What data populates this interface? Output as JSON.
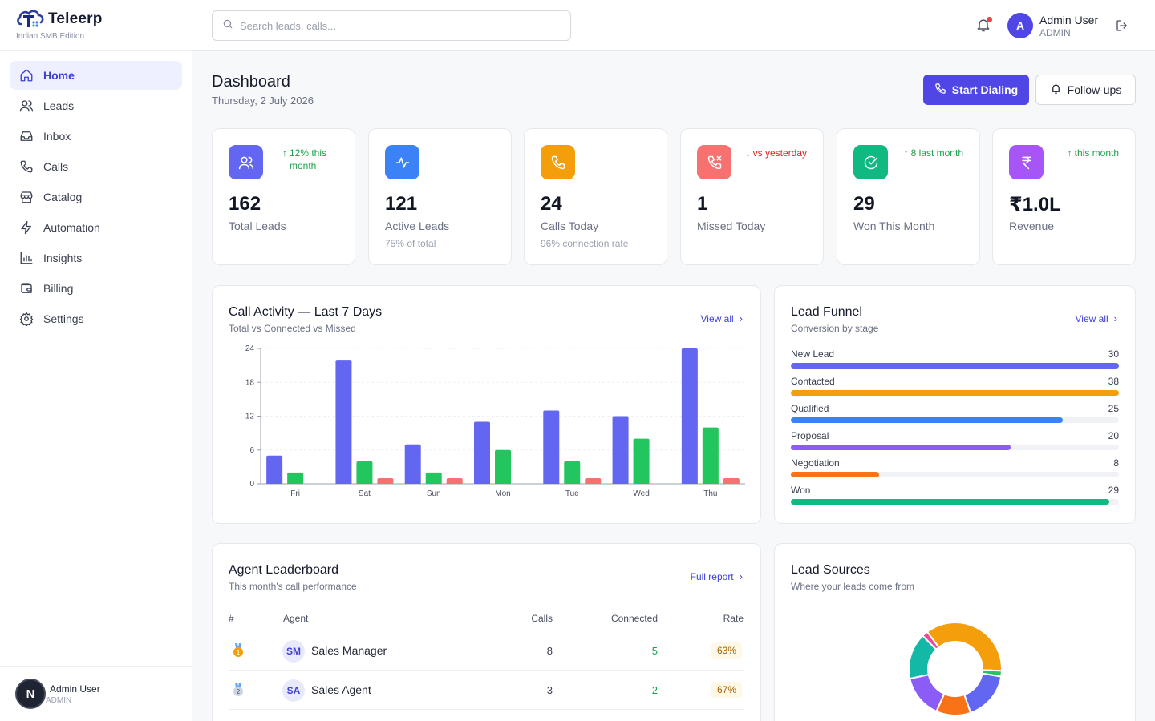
{
  "brand": {
    "name": "Teleerp",
    "subtitle": "Indian SMB Edition"
  },
  "nav": [
    {
      "label": "Home",
      "icon": "home-icon",
      "active": true
    },
    {
      "label": "Leads",
      "icon": "users-icon"
    },
    {
      "label": "Inbox",
      "icon": "inbox-icon"
    },
    {
      "label": "Calls",
      "icon": "phone-icon"
    },
    {
      "label": "Catalog",
      "icon": "store-icon"
    },
    {
      "label": "Automation",
      "icon": "zap-icon"
    },
    {
      "label": "Insights",
      "icon": "bar-chart-icon"
    },
    {
      "label": "Billing",
      "icon": "wallet-icon"
    },
    {
      "label": "Settings",
      "icon": "gear-icon"
    }
  ],
  "sidebar_user": {
    "initial": "N",
    "name": "Admin User",
    "role": "ADMIN"
  },
  "search": {
    "placeholder": "Search leads, calls..."
  },
  "user": {
    "initial": "A",
    "name": "Admin User",
    "role": "ADMIN"
  },
  "header": {
    "title": "Dashboard",
    "date": "Thursday, 2 July 2026",
    "primary_button": "Start Dialing",
    "secondary_button": "Follow-ups"
  },
  "stats": [
    {
      "value": "162",
      "label": "Total Leads",
      "sub": "",
      "trend": "12% this month",
      "trend_dir": "up",
      "color": "#6366f1",
      "icon": "users-icon"
    },
    {
      "value": "121",
      "label": "Active Leads",
      "sub": "75% of total",
      "trend": "",
      "trend_dir": "",
      "color": "#3b82f6",
      "icon": "activity-icon"
    },
    {
      "value": "24",
      "label": "Calls Today",
      "sub": "96% connection rate",
      "trend": "",
      "trend_dir": "",
      "color": "#f59e0b",
      "icon": "phone-icon"
    },
    {
      "value": "1",
      "label": "Missed Today",
      "sub": "",
      "trend": "vs yesterday",
      "trend_dir": "down",
      "color": "#f87171",
      "icon": "phone-missed-icon"
    },
    {
      "value": "29",
      "label": "Won This Month",
      "sub": "",
      "trend": "8 last month",
      "trend_dir": "up",
      "color": "#10b981",
      "icon": "check-circle-icon"
    },
    {
      "value": "₹1.0L",
      "label": "Revenue",
      "sub": "",
      "trend": "this month",
      "trend_dir": "up",
      "color": "#a855f7",
      "icon": "rupee-icon"
    }
  ],
  "call_activity": {
    "title": "Call Activity — Last 7 Days",
    "subtitle": "Total vs Connected vs Missed",
    "link": "View all"
  },
  "chart_data": {
    "type": "bar",
    "categories": [
      "Fri",
      "Sat",
      "Sun",
      "Mon",
      "Tue",
      "Wed",
      "Thu"
    ],
    "series": [
      {
        "values": [
          5,
          22,
          7,
          11,
          13,
          12,
          24
        ],
        "color": "#6366f1"
      },
      {
        "values": [
          2,
          4,
          2,
          6,
          4,
          8,
          10
        ],
        "color": "#22c55e"
      },
      {
        "values": [
          0,
          1,
          1,
          0,
          1,
          0,
          1
        ],
        "color": "#f87171"
      }
    ],
    "yticks": [
      "0",
      "6",
      "12",
      "18",
      "24"
    ],
    "ylim": [
      0,
      24
    ],
    "grid": true
  },
  "funnel": {
    "title": "Lead Funnel",
    "subtitle": "Conversion by stage",
    "link": "View all",
    "stages": [
      {
        "label": "New Lead",
        "value": "30",
        "fraction": 1.0,
        "color": "#6366f1"
      },
      {
        "label": "Contacted",
        "value": "38",
        "fraction": 1.0,
        "color": "#f59e0b"
      },
      {
        "label": "Qualified",
        "value": "25",
        "fraction": 0.83,
        "color": "#3b82f6"
      },
      {
        "label": "Proposal",
        "value": "20",
        "fraction": 0.67,
        "color": "#8b5cf6"
      },
      {
        "label": "Negotiation",
        "value": "8",
        "fraction": 0.27,
        "color": "#f97316"
      },
      {
        "label": "Won",
        "value": "29",
        "fraction": 0.97,
        "color": "#10b981"
      }
    ]
  },
  "leaderboard": {
    "title": "Agent Leaderboard",
    "subtitle": "This month's call performance",
    "link": "Full report",
    "columns": [
      "#",
      "Agent",
      "Calls",
      "Connected",
      "Rate"
    ],
    "rows": [
      {
        "medal": "gold-medal-icon",
        "initials": "SM",
        "name": "Sales Manager",
        "calls": "8",
        "connected": "5",
        "rate": "63%"
      },
      {
        "medal": "silver-medal-icon",
        "initials": "SA",
        "name": "Sales Agent",
        "calls": "3",
        "connected": "2",
        "rate": "67%"
      }
    ]
  },
  "sources": {
    "title": "Lead Sources",
    "subtitle": "Where your leads come from",
    "slices": [
      {
        "fraction": 0.36,
        "color": "#f59e0b"
      },
      {
        "fraction": 0.02,
        "color": "#22c55e"
      },
      {
        "fraction": 0.17,
        "color": "#6366f1"
      },
      {
        "fraction": 0.12,
        "color": "#f97316"
      },
      {
        "fraction": 0.15,
        "color": "#8b5cf6"
      },
      {
        "fraction": 0.16,
        "color": "#14b8a6"
      },
      {
        "fraction": 0.02,
        "color": "#ec4899"
      }
    ]
  }
}
